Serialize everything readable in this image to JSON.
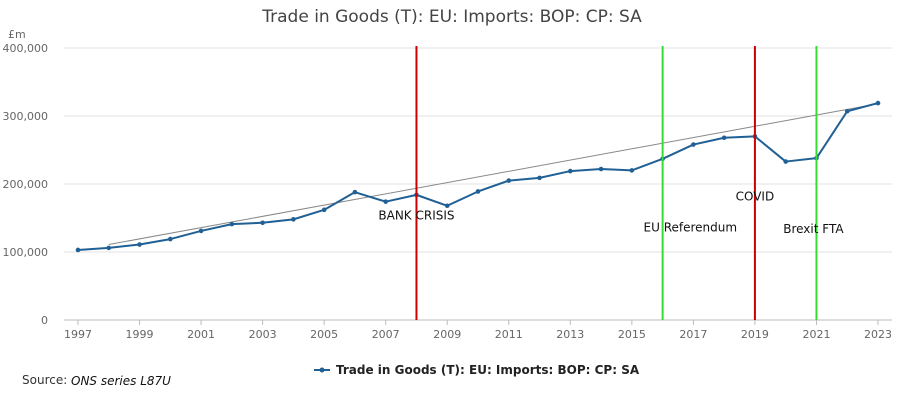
{
  "chart_data": {
    "type": "line",
    "title": "Trade in Goods (T): EU: Imports: BOP: CP: SA",
    "ylabel": "£m",
    "xlabel": "",
    "ylim": [
      0,
      400000
    ],
    "xlim": [
      1997,
      2023
    ],
    "y_ticks": [
      0,
      100000,
      200000,
      300000,
      400000
    ],
    "y_tick_labels": [
      "0",
      "100,000",
      "200,000",
      "300,000",
      "400,000"
    ],
    "x_ticks": [
      1997,
      1999,
      2001,
      2003,
      2005,
      2007,
      2009,
      2011,
      2013,
      2015,
      2017,
      2019,
      2021,
      2023
    ],
    "x_tick_labels": [
      "1997",
      "1999",
      "2001",
      "2003",
      "2005",
      "2007",
      "2009",
      "2011",
      "2013",
      "2015",
      "2017",
      "2019",
      "2021",
      "2023"
    ],
    "grid": true,
    "legend_position": "bottom",
    "series": [
      {
        "name": "Trade in Goods (T): EU: Imports: BOP: CP: SA",
        "color": "#206095",
        "x": [
          1997,
          1998,
          1999,
          2000,
          2001,
          2002,
          2003,
          2004,
          2005,
          2006,
          2007,
          2008,
          2009,
          2010,
          2011,
          2012,
          2013,
          2014,
          2015,
          2016,
          2017,
          2018,
          2019,
          2020,
          2021,
          2022,
          2023
        ],
        "values": [
          103000,
          106000,
          111000,
          119000,
          131000,
          141000,
          143000,
          148000,
          162000,
          188000,
          174000,
          184000,
          168000,
          189000,
          205000,
          209000,
          219000,
          222000,
          220000,
          237000,
          258000,
          268000,
          270000,
          233000,
          238000,
          307000,
          319000
        ]
      }
    ],
    "trendline": {
      "color": "#888888",
      "x": [
        1998,
        2023
      ],
      "values": [
        111000,
        318000
      ]
    },
    "annotations": [
      {
        "x": 2008,
        "color": "#cc0000",
        "label": "BANK CRISIS",
        "label_x": 2008,
        "label_y": 148000
      },
      {
        "x": 2016,
        "color": "#33dd33",
        "label": "EU Referendum",
        "label_x": 2016.9,
        "label_y": 130000
      },
      {
        "x": 2019,
        "color": "#cc0000",
        "label": "COVID",
        "label_x": 2019,
        "label_y": 176000
      },
      {
        "x": 2021,
        "color": "#33dd33",
        "label": "Brexit FTA",
        "label_x": 2020.9,
        "label_y": 128000
      }
    ],
    "source": {
      "label": "Source:",
      "value": "ONS series L87U"
    }
  }
}
